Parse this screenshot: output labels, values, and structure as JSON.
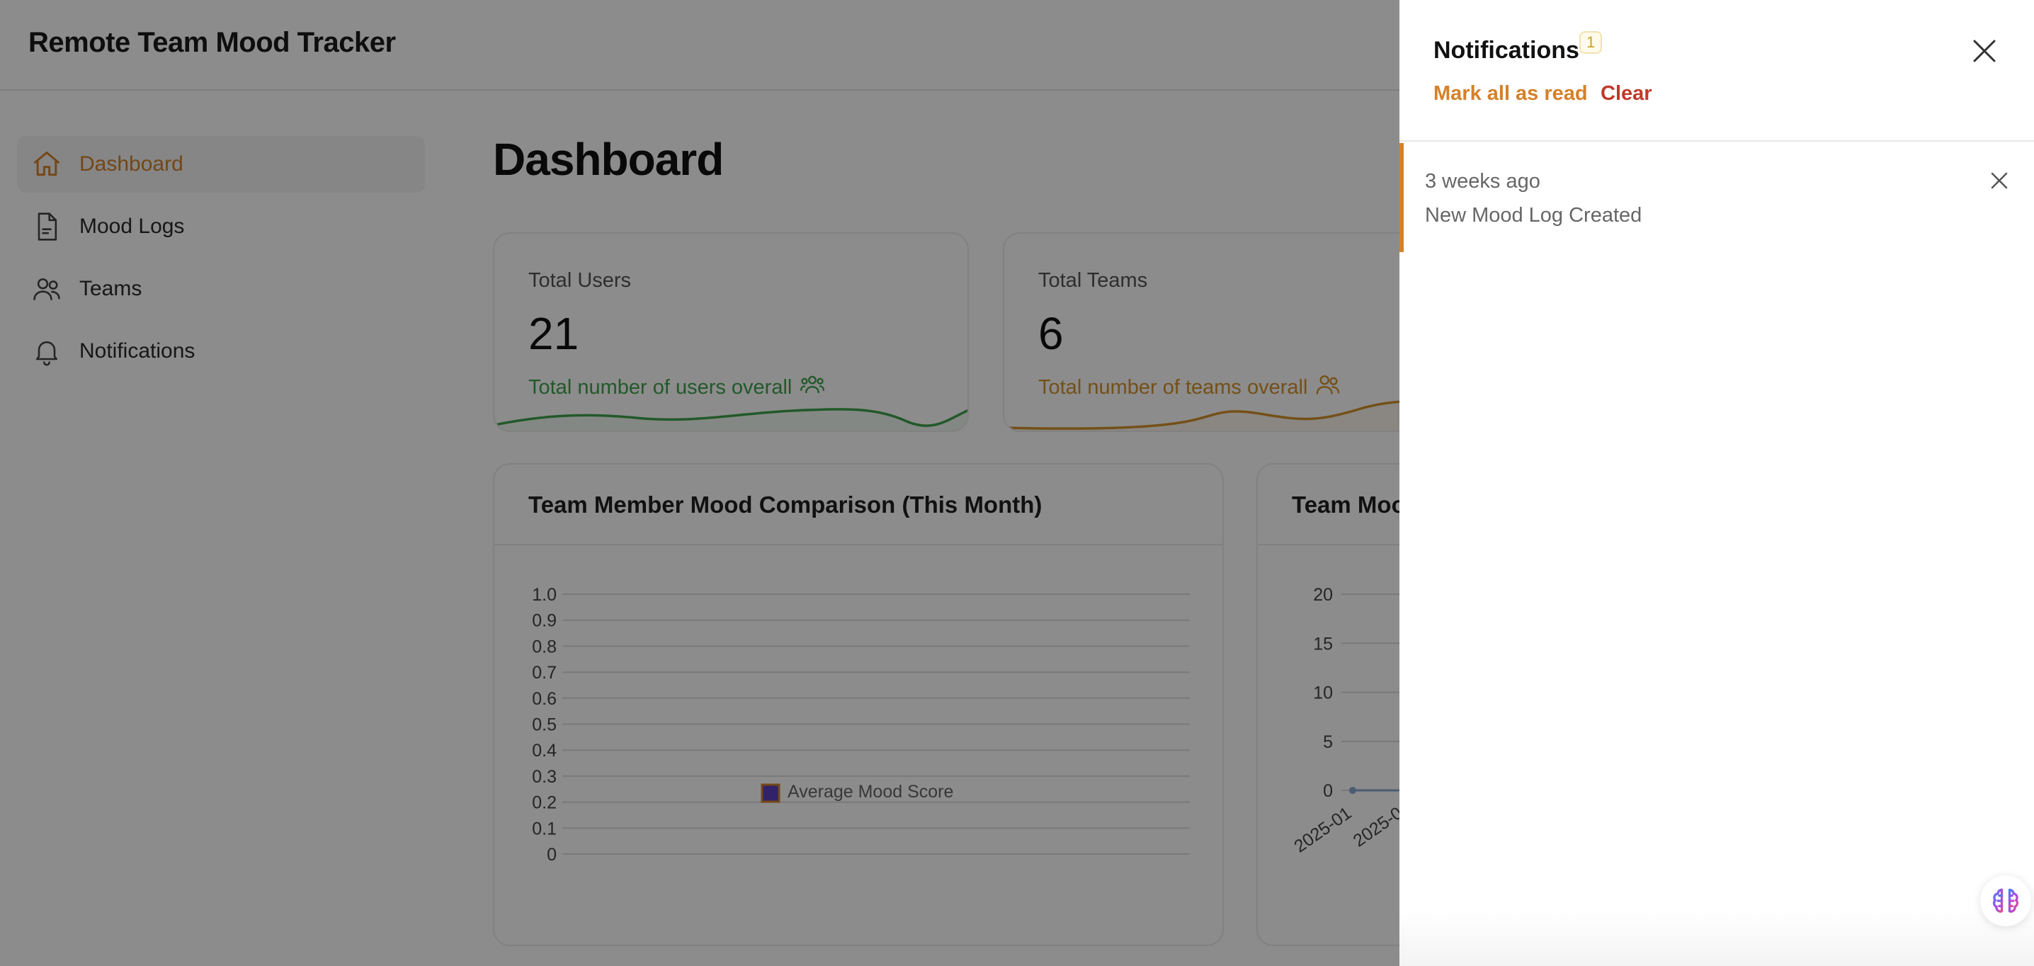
{
  "app": {
    "title": "Remote Team Mood Tracker"
  },
  "sidebar": {
    "items": [
      {
        "label": "Dashboard",
        "icon": "home-icon",
        "active": true
      },
      {
        "label": "Mood Logs",
        "icon": "document-icon",
        "active": false
      },
      {
        "label": "Teams",
        "icon": "users-icon",
        "active": false
      },
      {
        "label": "Notifications",
        "icon": "bell-icon",
        "active": false
      }
    ]
  },
  "main": {
    "page_title": "Dashboard",
    "stats": [
      {
        "label": "Total Users",
        "value": "21",
        "description": "Total number of users overall",
        "color": "#3fa34d",
        "icon": "users-icon"
      },
      {
        "label": "Total Teams",
        "value": "6",
        "description": "Total number of teams overall",
        "color": "#d4922a",
        "icon": "teams-icon"
      }
    ],
    "charts": [
      {
        "title": "Team Member Mood Comparison (This Month)"
      },
      {
        "title": "Team Moo"
      }
    ]
  },
  "chart_data": [
    {
      "type": "bar",
      "title": "Team Member Mood Comparison (This Month)",
      "categories": [],
      "series": [
        {
          "name": "Average Mood Score",
          "values": []
        }
      ],
      "yticks": [
        "1.0",
        "0.9",
        "0.8",
        "0.7",
        "0.6",
        "0.5",
        "0.4",
        "0.3",
        "0.2",
        "0.1",
        "0"
      ],
      "ylim": [
        0,
        1.0
      ],
      "legend": "bottom",
      "legend_color": "#5a3fc0",
      "legend_border": "#d4812a",
      "grid": true
    },
    {
      "type": "line",
      "title": "Team Moo",
      "x": [
        "2025-01",
        "2025-0"
      ],
      "series": [
        {
          "values": [
            0,
            0
          ]
        }
      ],
      "yticks": [
        "20",
        "15",
        "10",
        "5",
        "0"
      ],
      "ylim": [
        0,
        20
      ],
      "grid": true,
      "line_color": "#8aa8d0"
    }
  ],
  "drawer": {
    "title": "Notifications",
    "badge": "1",
    "mark_all_read": "Mark all as read",
    "clear": "Clear",
    "notifications": [
      {
        "time": "3 weeks ago",
        "text": "New Mood Log Created"
      }
    ]
  },
  "colors": {
    "accent": "#d4812a",
    "danger": "#c0392b",
    "green": "#3fa34d",
    "overlay": "rgba(0,0,0,0.45)"
  }
}
